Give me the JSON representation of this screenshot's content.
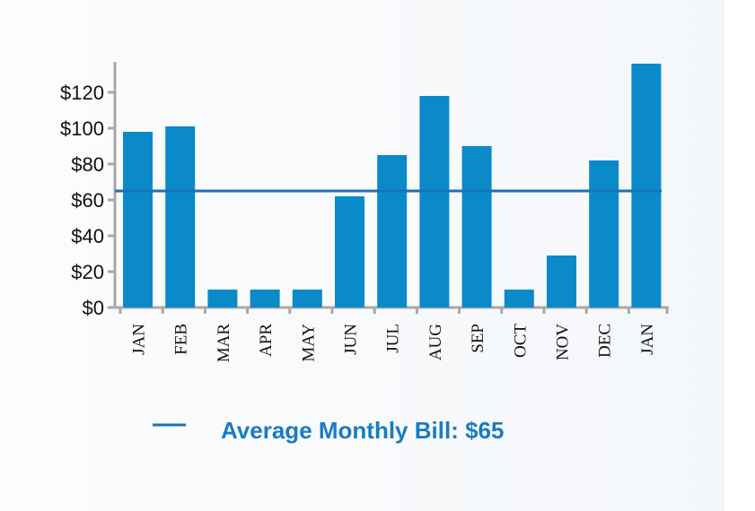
{
  "chart_data": {
    "type": "bar",
    "categories": [
      "JAN",
      "FEB",
      "MAR",
      "APR",
      "MAY",
      "JUN",
      "JUL",
      "AUG",
      "SEP",
      "OCT",
      "NOV",
      "DEC",
      "JAN"
    ],
    "values": [
      98,
      101,
      10,
      10,
      10,
      62,
      85,
      118,
      90,
      10,
      29,
      82,
      136
    ],
    "ylim": [
      0,
      136
    ],
    "yticks": [
      0,
      20,
      40,
      60,
      80,
      100,
      120
    ],
    "ytick_labels": [
      "$0",
      "$20",
      "$40",
      "$60",
      "$80",
      "$100",
      "$120"
    ],
    "reference_line": {
      "value": 65,
      "label": "Average Monthly Bill: $65"
    },
    "legend_placement": "bottom-center",
    "grid": false,
    "colors": {
      "bar": "#0a8ac8",
      "reference_line": "#1a72b8",
      "axis": "#a8a8a8"
    }
  }
}
